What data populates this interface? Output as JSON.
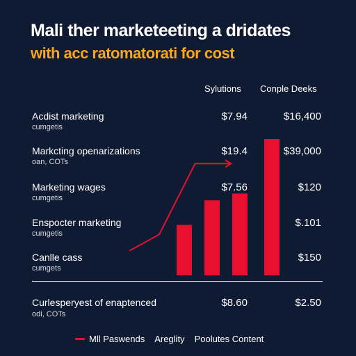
{
  "chart_data": {
    "type": "bar",
    "title": "Mali ther marketeeting a dridates",
    "subtitle": "with acc ratomatorati for cost",
    "columns": [
      "Sylutions",
      "Conple Deeks"
    ],
    "rows": [
      {
        "label": "Acdist marketing",
        "sub": "cumgetis",
        "col1": "$7.94",
        "col2": "$16,400"
      },
      {
        "label": "Markcting openarizations",
        "sub": "oan, COTs",
        "col1": "$19.4",
        "col2": "$39,000"
      },
      {
        "label": "Marketing wages",
        "sub": "cumgetis",
        "col1": "$7.56",
        "col2": "$120"
      },
      {
        "label": "Enspocter marketing",
        "sub": "cumgetis",
        "col1": "",
        "col2": "$.101"
      },
      {
        "label": "Canlle cass",
        "sub": "cumgets",
        "col1": "",
        "col2": "$150"
      }
    ],
    "total": {
      "label": "Curlesperyest of enaptenced",
      "sub": "odi, COTs",
      "col1": "$8.60",
      "col2": "$2.50"
    },
    "bars": [
      {
        "value": 0.37
      },
      {
        "value": 0.55
      },
      {
        "value": 0.6
      },
      {
        "value": 1.0
      }
    ],
    "trend": [
      [
        0.0,
        0.18
      ],
      [
        0.25,
        0.3
      ],
      [
        0.55,
        0.82
      ],
      [
        0.85,
        0.82
      ]
    ],
    "legend": [
      "Mll Paswends",
      "Areglity",
      "Poolutes Content"
    ],
    "colors": {
      "bar": "#e8102f",
      "line": "#e8102f",
      "accent": "#f5a623",
      "background": "#0f1b33"
    }
  }
}
